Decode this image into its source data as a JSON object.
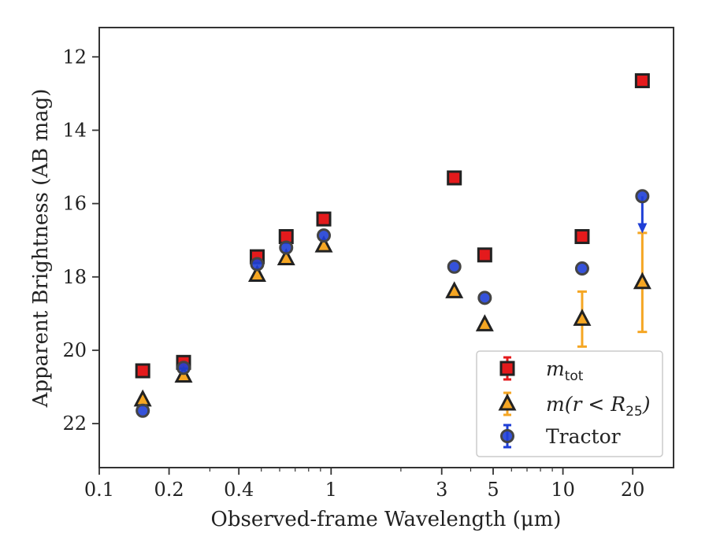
{
  "chart_data": {
    "type": "scatter",
    "title": "",
    "xlabel": "Observed-frame Wavelength (μm)",
    "ylabel": "Apparent Brightness (AB mag)",
    "xscale": "log",
    "xlim": [
      0.1,
      30
    ],
    "ylim": [
      23.2,
      11.2
    ],
    "y_inverted": true,
    "grid": false,
    "legend_position": "lower-right",
    "x_ticks": [
      {
        "value": 0.1,
        "label": "0.1"
      },
      {
        "value": 0.2,
        "label": "0.2"
      },
      {
        "value": 0.4,
        "label": "0.4"
      },
      {
        "value": 1,
        "label": "1"
      },
      {
        "value": 3,
        "label": "3"
      },
      {
        "value": 5,
        "label": "5"
      },
      {
        "value": 10,
        "label": "10"
      },
      {
        "value": 20,
        "label": "20"
      }
    ],
    "y_ticks": [
      {
        "value": 12,
        "label": "12"
      },
      {
        "value": 14,
        "label": "14"
      },
      {
        "value": 16,
        "label": "16"
      },
      {
        "value": 18,
        "label": "18"
      },
      {
        "value": 20,
        "label": "20"
      },
      {
        "value": 22,
        "label": "22"
      }
    ],
    "series": [
      {
        "name": "m_tot",
        "legend_label": "m",
        "legend_sub": "tot",
        "marker": "square",
        "color": "#e41a1c",
        "edge": "#222222",
        "err_color": "#e41a1c",
        "points": [
          {
            "x": 0.154,
            "y": 20.56
          },
          {
            "x": 0.231,
            "y": 20.33
          },
          {
            "x": 0.48,
            "y": 17.45
          },
          {
            "x": 0.64,
            "y": 16.9
          },
          {
            "x": 0.93,
            "y": 16.42
          },
          {
            "x": 3.4,
            "y": 15.3
          },
          {
            "x": 4.6,
            "y": 17.4
          },
          {
            "x": 12.1,
            "y": 16.9
          },
          {
            "x": 22.0,
            "y": 12.65
          }
        ]
      },
      {
        "name": "m(r<R25)",
        "legend_label": "m(r < R",
        "legend_sub": "25",
        "legend_tail": ")",
        "marker": "triangle",
        "color": "#f5a623",
        "edge": "#222222",
        "err_color": "#f5a623",
        "points": [
          {
            "x": 0.154,
            "y": 21.35
          },
          {
            "x": 0.231,
            "y": 20.7
          },
          {
            "x": 0.48,
            "y": 17.95
          },
          {
            "x": 0.64,
            "y": 17.5
          },
          {
            "x": 0.93,
            "y": 17.15
          },
          {
            "x": 3.4,
            "y": 18.4
          },
          {
            "x": 4.6,
            "y": 19.3
          },
          {
            "x": 12.1,
            "y": 19.15,
            "err": [
              18.4,
              19.9
            ]
          },
          {
            "x": 22.0,
            "y": 18.15,
            "err": [
              16.8,
              19.5
            ]
          }
        ]
      },
      {
        "name": "Tractor",
        "legend_label": "Tractor",
        "marker": "circle",
        "color": "#1f3fd6",
        "edge": "#444444",
        "err_color": "#1f3fd6",
        "points": [
          {
            "x": 0.154,
            "y": 21.65
          },
          {
            "x": 0.231,
            "y": 20.48
          },
          {
            "x": 0.48,
            "y": 17.65
          },
          {
            "x": 0.64,
            "y": 17.2
          },
          {
            "x": 0.93,
            "y": 16.87
          },
          {
            "x": 3.4,
            "y": 17.72
          },
          {
            "x": 4.6,
            "y": 18.57
          },
          {
            "x": 12.1,
            "y": 17.77
          },
          {
            "x": 22.0,
            "y": 15.8,
            "upper_limit_to": 16.75
          }
        ]
      }
    ]
  }
}
